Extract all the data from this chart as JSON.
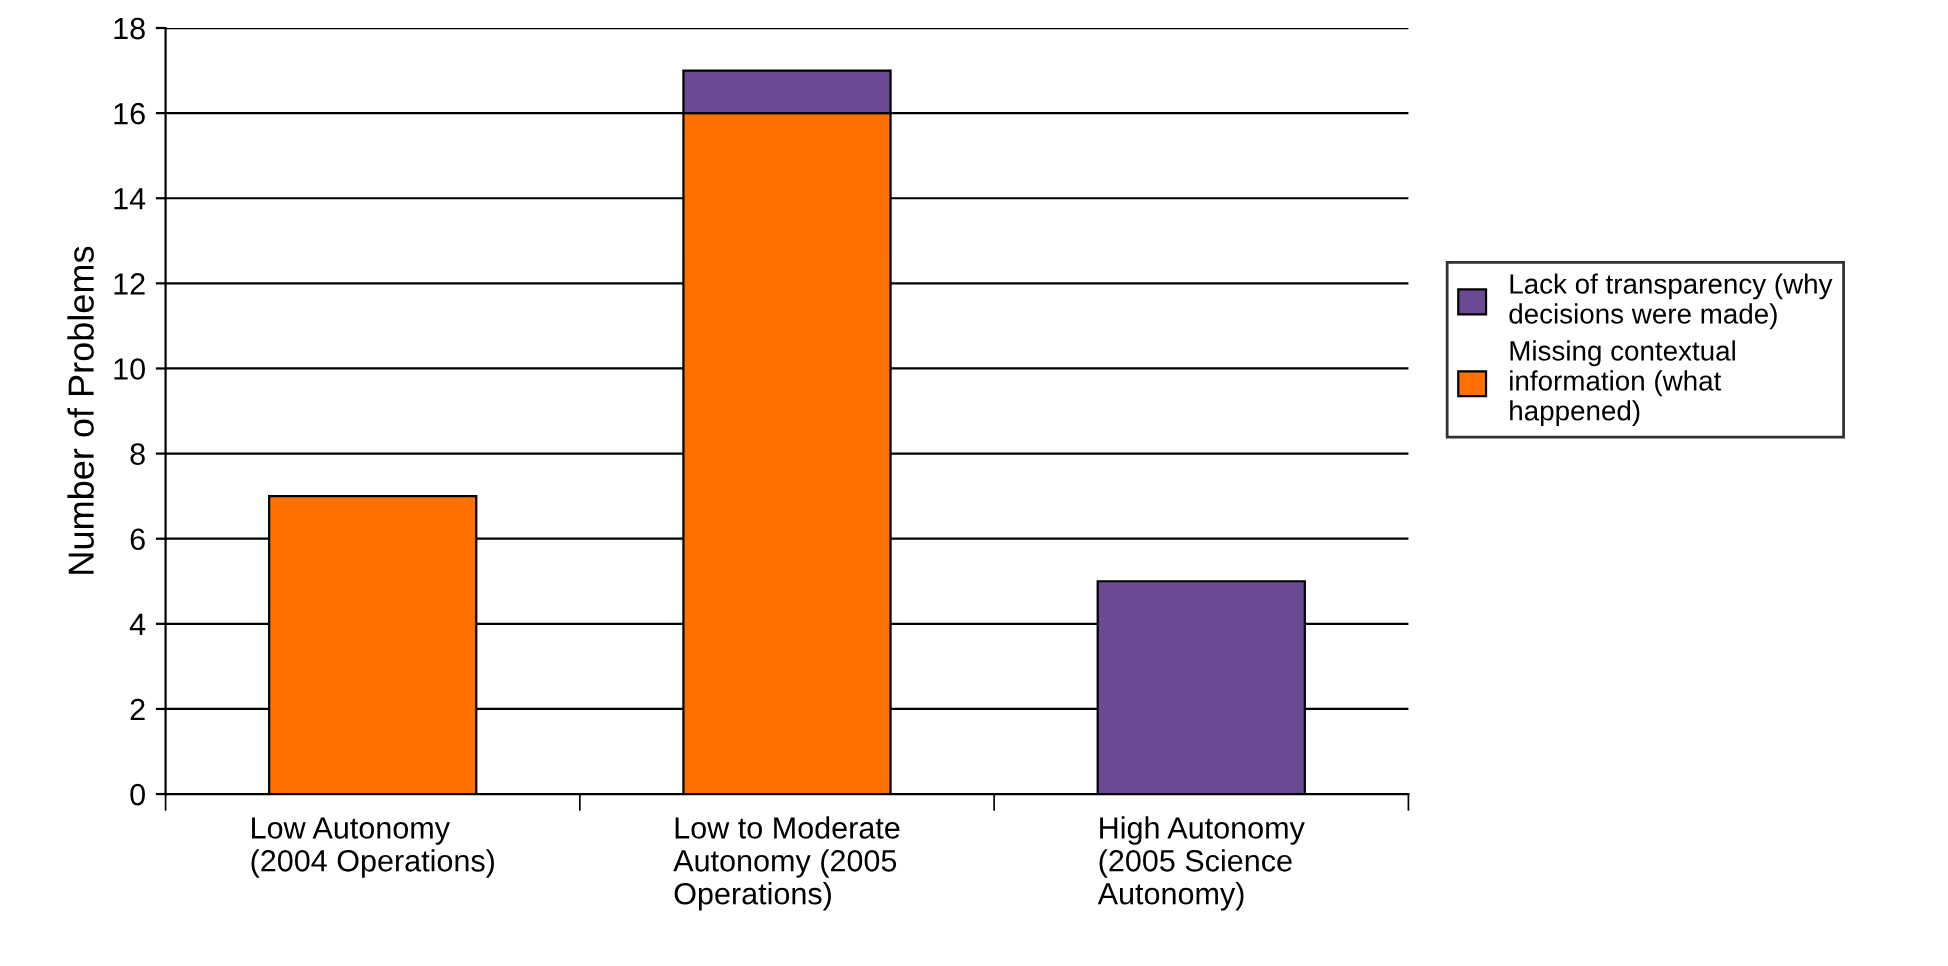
{
  "chart_data": {
    "type": "bar",
    "stacked": true,
    "ylabel": "Number of Problems",
    "categories": [
      "Low Autonomy\n(2004 Operations)",
      "Low to Moderate\nAutonomy (2005\nOperations)",
      "High Autonomy\n(2005 Science\nAutonomy)"
    ],
    "series": [
      {
        "name": "Missing contextual\ninformation (what\nhappened)",
        "color": "#ff7000",
        "values": [
          7,
          16,
          0
        ]
      },
      {
        "name": "Lack of transparency (why\ndecisions were made)",
        "color": "#6a4a94",
        "values": [
          0,
          1,
          5
        ]
      }
    ],
    "ylim": [
      0,
      18
    ],
    "yticks": [
      0,
      2,
      4,
      6,
      8,
      10,
      12,
      14,
      16,
      18
    ],
    "grid": "y",
    "legend": "right"
  }
}
